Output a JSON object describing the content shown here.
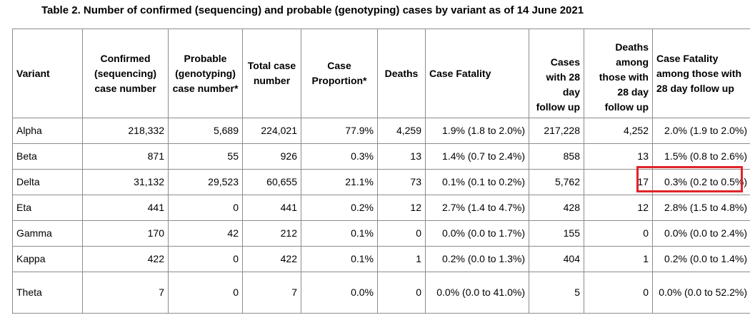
{
  "title": "Table 2. Number of confirmed (sequencing) and probable (genotyping) cases by variant as of 14 June 2021",
  "headers": {
    "variant": "Variant",
    "confirmed": "Confirmed (sequencing) case number",
    "probable": "Probable (genotyping) case number*",
    "total": "Total case number",
    "proportion": "Case Proportion*",
    "deaths": "Deaths",
    "fatality": "Case Fatality",
    "cases28": "Cases with 28 day follow up",
    "deaths28": "Deaths among those with 28 day follow up",
    "fatality28": "Case Fatality among those with 28 day follow up"
  },
  "rows": [
    {
      "variant": "Alpha",
      "confirmed": "218,332",
      "probable": "5,689",
      "total": "224,021",
      "proportion": "77.9%",
      "deaths": "4,259",
      "fatality": "1.9% (1.8 to 2.0%)",
      "cases28": "217,228",
      "deaths28": "4,252",
      "fatality28": "2.0% (1.9 to 2.0%)"
    },
    {
      "variant": "Beta",
      "confirmed": "871",
      "probable": "55",
      "total": "926",
      "proportion": "0.3%",
      "deaths": "13",
      "fatality": "1.4% (0.7 to 2.4%)",
      "cases28": "858",
      "deaths28": "13",
      "fatality28": "1.5% (0.8 to 2.6%)"
    },
    {
      "variant": "Delta",
      "confirmed": "31,132",
      "probable": "29,523",
      "total": "60,655",
      "proportion": "21.1%",
      "deaths": "73",
      "fatality": "0.1% (0.1 to 0.2%)",
      "cases28": "5,762",
      "deaths28": "17",
      "fatality28": "0.3% (0.2 to 0.5%)"
    },
    {
      "variant": "Eta",
      "confirmed": "441",
      "probable": "0",
      "total": "441",
      "proportion": "0.2%",
      "deaths": "12",
      "fatality": "2.7% (1.4 to 4.7%)",
      "cases28": "428",
      "deaths28": "12",
      "fatality28": "2.8% (1.5 to 4.8%)"
    },
    {
      "variant": "Gamma",
      "confirmed": "170",
      "probable": "42",
      "total": "212",
      "proportion": "0.1%",
      "deaths": "0",
      "fatality": "0.0% (0.0 to 1.7%)",
      "cases28": "155",
      "deaths28": "0",
      "fatality28": "0.0% (0.0 to 2.4%)"
    },
    {
      "variant": "Kappa",
      "confirmed": "422",
      "probable": "0",
      "total": "422",
      "proportion": "0.1%",
      "deaths": "1",
      "fatality": "0.2% (0.0 to 1.3%)",
      "cases28": "404",
      "deaths28": "1",
      "fatality28": "0.2% (0.0 to 1.4%)"
    },
    {
      "variant": "Theta",
      "confirmed": "7",
      "probable": "0",
      "total": "7",
      "proportion": "0.0%",
      "deaths": "0",
      "fatality": "0.0% (0.0 to 41.0%)",
      "cases28": "5",
      "deaths28": "0",
      "fatality28": "0.0% (0.0 to 52.2%)"
    }
  ],
  "highlight_color": "#e0242a"
}
